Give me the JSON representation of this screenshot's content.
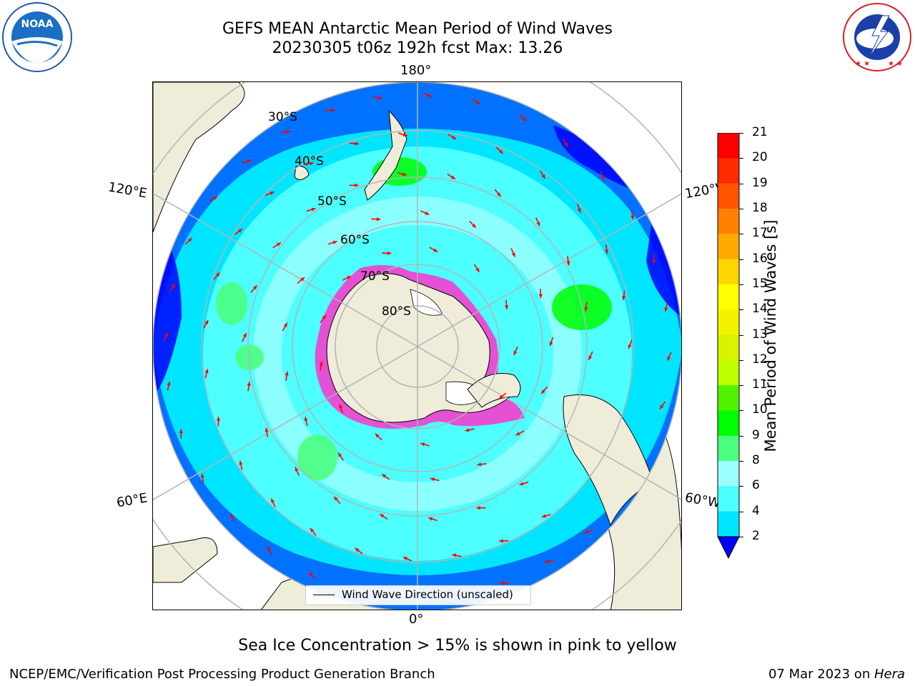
{
  "title": {
    "line1": "GEFS MEAN Antarctic Mean Period of Wind Waves",
    "line2": "20230305 t06z 192h fcst   Max: 13.26"
  },
  "logos": {
    "left": "noaa-logo",
    "left_text": "NATIONAL OCEANIC AND ATMOSPHERIC ADMINISTRATION · U.S. DEPARTMENT OF COMMERCE",
    "left_abbr": "NOAA",
    "right": "nws-logo",
    "right_text": "NATIONAL WEATHER SERVICE"
  },
  "map": {
    "projection": "south-polar-stereographic",
    "lat_labels": [
      "30°S",
      "40°S",
      "50°S",
      "60°S",
      "70°S",
      "80°S"
    ],
    "lon_labels": {
      "top": "180°",
      "bottom": "0°",
      "left_upper": "120°E",
      "left_lower": "60°E",
      "right_upper": "120°W",
      "right_lower": "60°W"
    },
    "colors": {
      "land": "#efedd9",
      "ice_fill": "#ffffff",
      "graticule": "#b4b4b4",
      "arrow": "#ff0000"
    }
  },
  "colorbar": {
    "label": "Mean Period of Wind Waves [s]",
    "ticks": [
      "2",
      "4",
      "6",
      "8",
      "9",
      "10",
      "11",
      "12",
      "13",
      "14",
      "15",
      "16",
      "17",
      "18",
      "19",
      "20",
      "21"
    ],
    "colors": [
      "#0072ff",
      "#00e5ff",
      "#4dffff",
      "#9cffff",
      "#4dff80",
      "#00ff00",
      "#52f200",
      "#bdff00",
      "#d9f200",
      "#f2f200",
      "#ffff00",
      "#ffd500",
      "#ffaa00",
      "#ff8000",
      "#ff5500",
      "#ff2a00",
      "#ff0000"
    ],
    "under_color": "#0000ff"
  },
  "legend": {
    "label": "Wind Wave Direction (unscaled)"
  },
  "caption": "Sea Ice Concentration > 15% is shown in pink to yellow",
  "footer": {
    "credit": "NCEP/EMC/Verification Post Processing Product Generation Branch",
    "date": "07 Mar 2023 on ",
    "machine": "Hera"
  }
}
